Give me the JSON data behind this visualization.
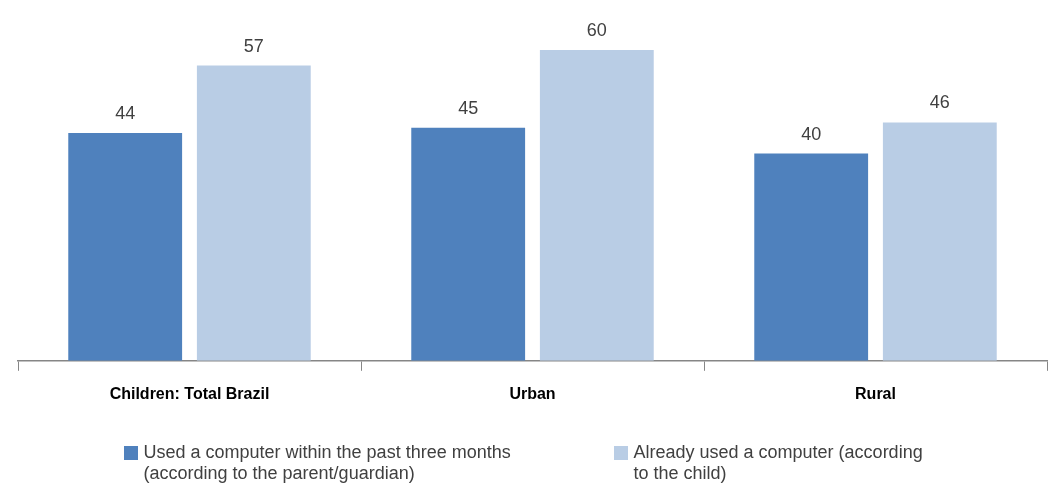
{
  "chart_data": {
    "type": "bar",
    "categories": [
      "Children: Total Brazil",
      "Urban",
      "Rural"
    ],
    "series": [
      {
        "name": "Used a computer within the past three months (according to the parent/guardian)",
        "color": "#4f81bd",
        "values": [
          44,
          45,
          40
        ]
      },
      {
        "name": "Already used a computer (according to the child)",
        "color": "#b9cde5",
        "values": [
          57,
          60,
          46
        ]
      }
    ],
    "data_labels": true,
    "relative": false,
    "grid": false,
    "legend": "bottom"
  }
}
